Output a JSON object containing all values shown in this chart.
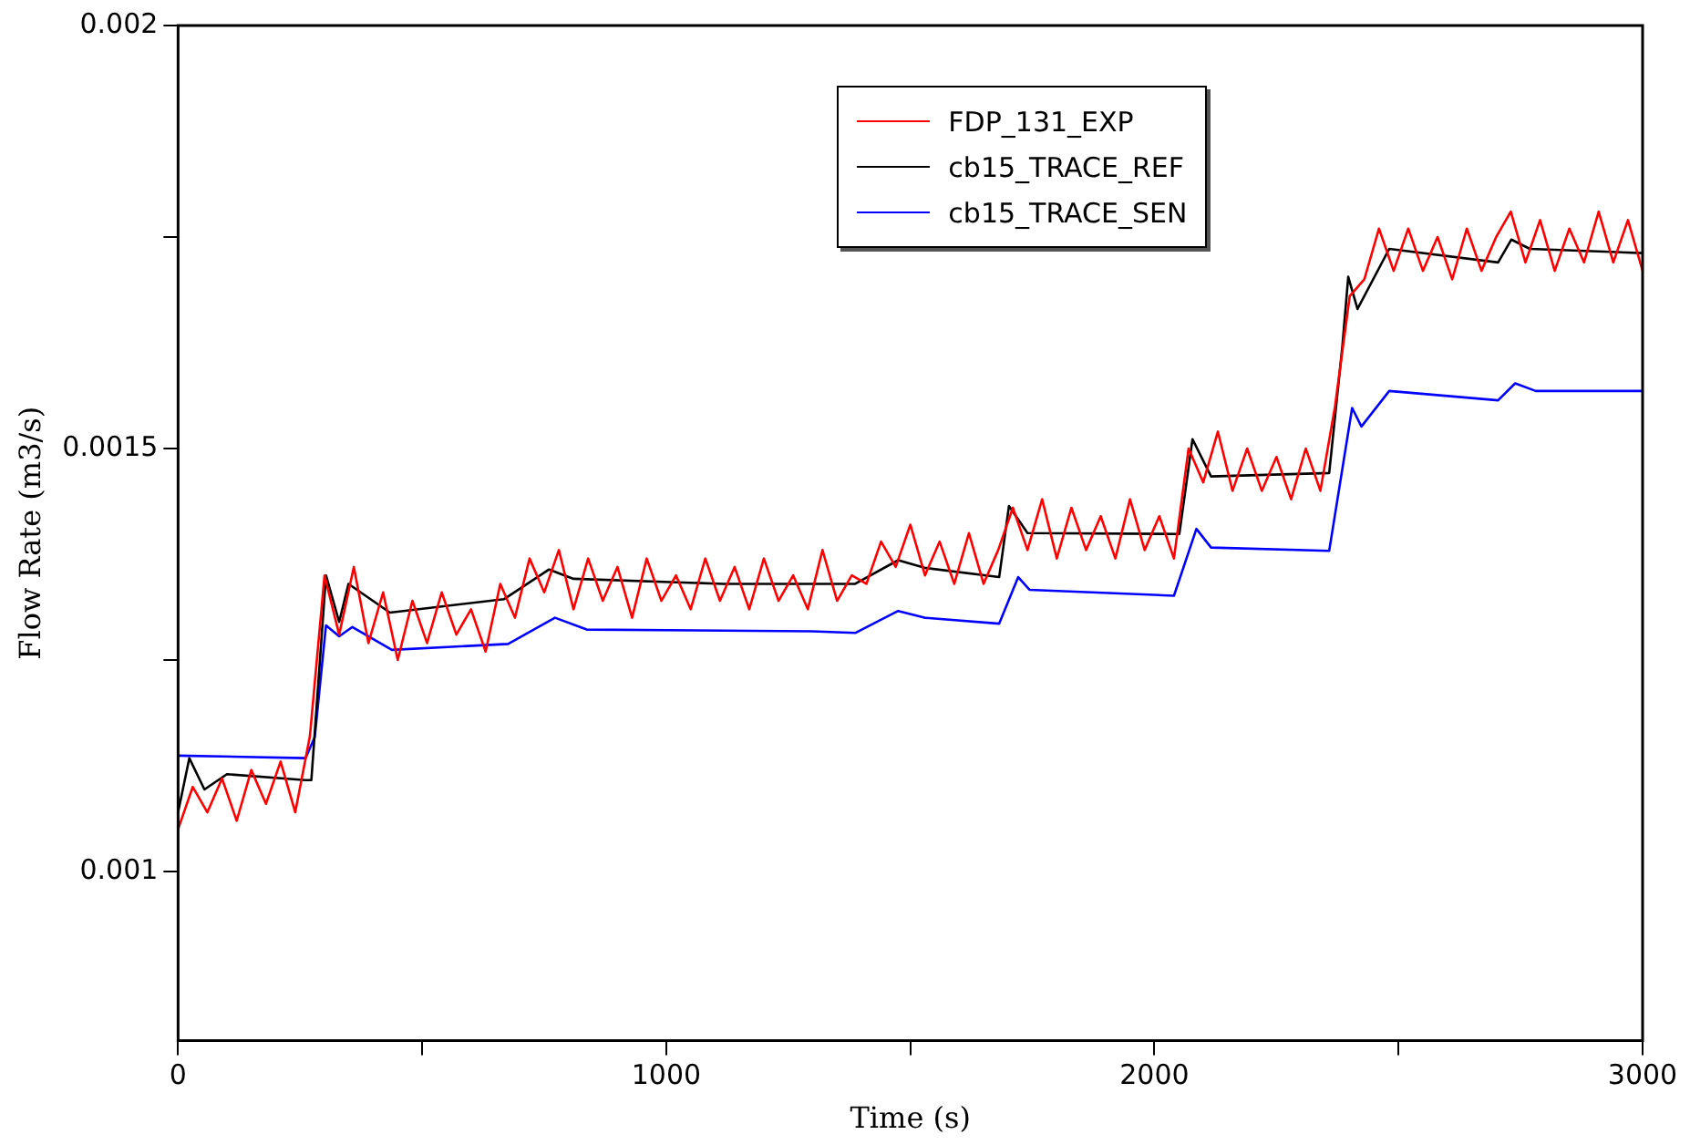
{
  "chart_data": {
    "type": "line",
    "xlabel": "Time (s)",
    "ylabel": "Flow Rate (m3/s)",
    "xlim": [
      0,
      3000
    ],
    "ylim": [
      0.0008,
      0.002
    ],
    "xticks": [
      0,
      {
        "value": 500,
        "label": null
      },
      1000,
      {
        "value": 1500,
        "label": null
      },
      2000,
      {
        "value": 2500,
        "label": null
      },
      3000
    ],
    "yticks": [
      {
        "value": 0.001,
        "label": "0.001"
      },
      {
        "value": 0.00125,
        "label": null
      },
      {
        "value": 0.0015,
        "label": "0.0015"
      },
      {
        "value": 0.00175,
        "label": null
      },
      {
        "value": 0.002,
        "label": "0.002"
      }
    ],
    "legend": "top",
    "marker": "none",
    "line_style": "solid",
    "series": [
      {
        "name": "FDP_131_EXP",
        "color": "#ff0000",
        "x": [
          0,
          30,
          60,
          90,
          120,
          150,
          180,
          210,
          240,
          270,
          300,
          330,
          360,
          390,
          420,
          450,
          480,
          510,
          540,
          570,
          600,
          630,
          660,
          690,
          720,
          750,
          780,
          810,
          840,
          870,
          900,
          930,
          960,
          990,
          1020,
          1050,
          1080,
          1110,
          1140,
          1170,
          1200,
          1230,
          1260,
          1290,
          1320,
          1350,
          1380,
          1410,
          1440,
          1470,
          1500,
          1530,
          1560,
          1590,
          1620,
          1650,
          1680,
          1710,
          1740,
          1770,
          1800,
          1830,
          1860,
          1890,
          1920,
          1950,
          1980,
          2010,
          2040,
          2070,
          2100,
          2130,
          2160,
          2190,
          2220,
          2250,
          2280,
          2310,
          2340,
          2370,
          2400,
          2430,
          2460,
          2490,
          2520,
          2550,
          2580,
          2610,
          2640,
          2670,
          2700,
          2730,
          2760,
          2790,
          2820,
          2850,
          2880,
          2910,
          2940,
          2970,
          3000
        ],
        "values": [
          0.00105,
          0.0011,
          0.00107,
          0.00111,
          0.00106,
          0.00112,
          0.00108,
          0.00113,
          0.00107,
          0.00116,
          0.00135,
          0.00128,
          0.00136,
          0.00127,
          0.00133,
          0.00125,
          0.00132,
          0.00127,
          0.00133,
          0.00128,
          0.00131,
          0.00126,
          0.00134,
          0.0013,
          0.00137,
          0.00133,
          0.00138,
          0.00131,
          0.00137,
          0.00132,
          0.00136,
          0.0013,
          0.00137,
          0.00132,
          0.00135,
          0.00131,
          0.00137,
          0.00132,
          0.00136,
          0.00131,
          0.00137,
          0.00132,
          0.00135,
          0.00131,
          0.00138,
          0.00132,
          0.00135,
          0.00134,
          0.00139,
          0.00136,
          0.00141,
          0.00135,
          0.00139,
          0.00134,
          0.0014,
          0.00134,
          0.00138,
          0.00143,
          0.00138,
          0.00144,
          0.00137,
          0.00143,
          0.00138,
          0.00142,
          0.00137,
          0.00144,
          0.00138,
          0.00142,
          0.00137,
          0.0015,
          0.00146,
          0.00152,
          0.00145,
          0.0015,
          0.00145,
          0.00149,
          0.00144,
          0.0015,
          0.00145,
          0.00155,
          0.00168,
          0.0017,
          0.00176,
          0.00171,
          0.00176,
          0.00171,
          0.00175,
          0.0017,
          0.00176,
          0.00171,
          0.00175,
          0.00178,
          0.00172,
          0.00177,
          0.00171,
          0.00176,
          0.00172,
          0.00178,
          0.00172,
          0.00177,
          0.00171
        ]
      },
      {
        "name": "cb15_TRACE_REF",
        "color": "#000000",
        "x": [
          0,
          23,
          54,
          100,
          261,
          273,
          303,
          330,
          349,
          434,
          668,
          760,
          810,
          1118,
          1387,
          1475,
          1529,
          1682,
          1702,
          1740,
          2051,
          2078,
          2116,
          2358,
          2385,
          2397,
          2416,
          2481,
          2704,
          2731,
          2769,
          3000
        ],
        "values": [
          0.00107,
          0.001134,
          0.001097,
          0.001115,
          0.001108,
          0.001108,
          0.00135,
          0.001295,
          0.00134,
          0.001306,
          0.001322,
          0.001357,
          0.001346,
          0.00134,
          0.00134,
          0.001368,
          0.001359,
          0.001348,
          0.001432,
          0.0014,
          0.001399,
          0.001511,
          0.001467,
          0.001471,
          0.001621,
          0.001703,
          0.001665,
          0.001736,
          0.00172,
          0.001747,
          0.001736,
          0.001731
        ]
      },
      {
        "name": "cb15_TRACE_SEN",
        "color": "#0000ff",
        "x": [
          0,
          261,
          280,
          303,
          330,
          357,
          438,
          676,
          772,
          837,
          1298,
          1387,
          1475,
          1529,
          1682,
          1721,
          1744,
          2040,
          2086,
          2116,
          2358,
          2405,
          2424,
          2481,
          2704,
          2739,
          2781,
          3000
        ],
        "values": [
          0.001137,
          0.001134,
          0.001159,
          0.001291,
          0.001278,
          0.001289,
          0.001262,
          0.001269,
          0.0013,
          0.001286,
          0.001284,
          0.001282,
          0.001308,
          0.0013,
          0.001293,
          0.001348,
          0.001333,
          0.001326,
          0.001405,
          0.001383,
          0.001379,
          0.001548,
          0.001526,
          0.001568,
          0.001557,
          0.001577,
          0.001568,
          0.001568
        ]
      }
    ]
  }
}
